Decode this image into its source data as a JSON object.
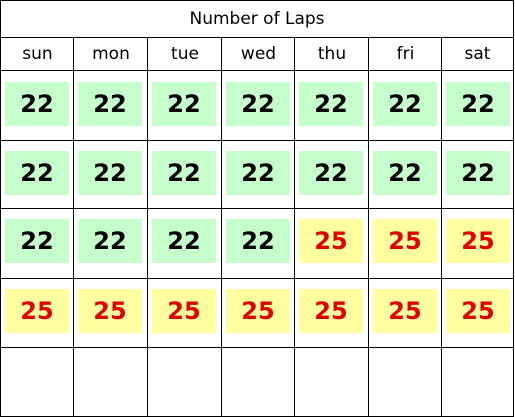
{
  "title": "Number of Laps",
  "days": [
    "sun",
    "mon",
    "tue",
    "wed",
    "thu",
    "fri",
    "sat"
  ],
  "colors": {
    "green_bg": "#c6ffcc",
    "yellow_bg": "#ffffa0",
    "red_text": "#e00000"
  },
  "weeks": [
    [
      {
        "value": "22",
        "style": "green"
      },
      {
        "value": "22",
        "style": "green"
      },
      {
        "value": "22",
        "style": "green"
      },
      {
        "value": "22",
        "style": "green"
      },
      {
        "value": "22",
        "style": "green"
      },
      {
        "value": "22",
        "style": "green"
      },
      {
        "value": "22",
        "style": "green"
      }
    ],
    [
      {
        "value": "22",
        "style": "green"
      },
      {
        "value": "22",
        "style": "green"
      },
      {
        "value": "22",
        "style": "green"
      },
      {
        "value": "22",
        "style": "green"
      },
      {
        "value": "22",
        "style": "green"
      },
      {
        "value": "22",
        "style": "green"
      },
      {
        "value": "22",
        "style": "green"
      }
    ],
    [
      {
        "value": "22",
        "style": "green"
      },
      {
        "value": "22",
        "style": "green"
      },
      {
        "value": "22",
        "style": "green"
      },
      {
        "value": "22",
        "style": "green"
      },
      {
        "value": "25",
        "style": "yellow"
      },
      {
        "value": "25",
        "style": "yellow"
      },
      {
        "value": "25",
        "style": "yellow"
      }
    ],
    [
      {
        "value": "25",
        "style": "yellow"
      },
      {
        "value": "25",
        "style": "yellow"
      },
      {
        "value": "25",
        "style": "yellow"
      },
      {
        "value": "25",
        "style": "yellow"
      },
      {
        "value": "25",
        "style": "yellow"
      },
      {
        "value": "25",
        "style": "yellow"
      },
      {
        "value": "25",
        "style": "yellow"
      }
    ],
    [
      null,
      null,
      null,
      null,
      null,
      null,
      null
    ]
  ]
}
